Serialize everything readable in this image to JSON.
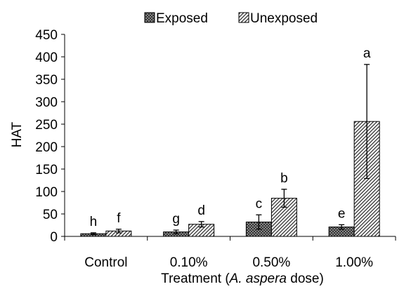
{
  "chart_data": {
    "type": "bar",
    "categories": [
      "Control",
      "0.10%",
      "0.50%",
      "1.00%"
    ],
    "series": [
      {
        "name": "Exposed",
        "values": [
          6,
          10,
          32,
          21
        ],
        "error": [
          2,
          4,
          16,
          5
        ],
        "letters": [
          "h",
          "g",
          "c",
          "e"
        ],
        "pattern": "crosshatch"
      },
      {
        "name": "Unexposed",
        "values": [
          12,
          27,
          85,
          256
        ],
        "error": [
          4,
          6,
          20,
          127
        ],
        "letters": [
          "f",
          "d",
          "b",
          "a"
        ],
        "pattern": "diagonal"
      }
    ],
    "yticks": [
      "0",
      "50",
      "100",
      "150",
      "200",
      "250",
      "300",
      "350",
      "400",
      "450"
    ],
    "ylim": [
      0,
      450
    ],
    "ylabel": "HAT",
    "xlabel": {
      "before": "Treatment (",
      "italic": "A. aspera",
      "after": " dose)"
    },
    "legend_position": "top",
    "grid": false
  }
}
